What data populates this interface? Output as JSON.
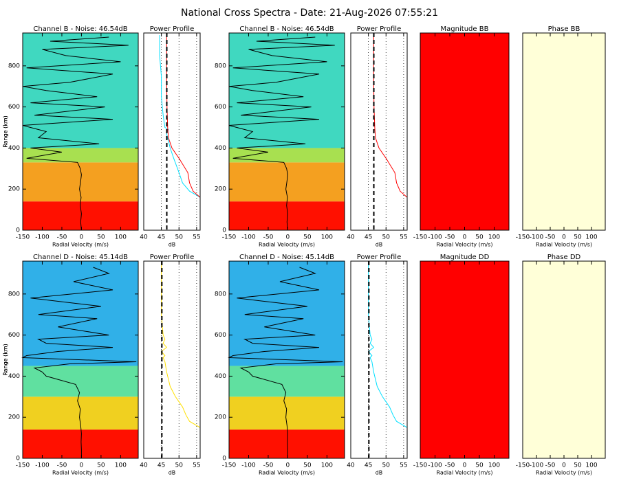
{
  "title": "National Cross Spectra - Date: 21-Aug-2026 07:55:21",
  "chart_data": [
    {
      "type": "heatmap",
      "title": "Channel B - Noise: 46.54dB",
      "xlabel": "Radial Velocity (m/s)",
      "ylabel": "Range (km)",
      "xlim": [
        -150,
        145
      ],
      "ylim": [
        0,
        960
      ],
      "xticks": [
        -150,
        -100,
        -50,
        0,
        50,
        100
      ],
      "yticks": [
        0,
        200,
        400,
        600,
        800
      ],
      "bands": [
        {
          "y0": 0,
          "y1": 140,
          "color": "#ff1000"
        },
        {
          "y0": 140,
          "y1": 330,
          "color": "#f4a020"
        },
        {
          "y0": 330,
          "y1": 400,
          "color": "#a8e050"
        },
        {
          "y0": 400,
          "y1": 960,
          "color": "#40d8c0"
        }
      ],
      "series": [
        {
          "color": "#000000",
          "x": [
            0,
            -2,
            0,
            -3,
            -1,
            -5,
            -2,
            0,
            -3,
            -10,
            -140,
            -50,
            -130,
            45,
            -110,
            -90,
            -150,
            80,
            -120,
            60,
            -130,
            40,
            -90,
            -150,
            -30,
            80,
            -140,
            100,
            -40,
            -100,
            120,
            -80,
            70
          ],
          "values": [
            0,
            40,
            80,
            120,
            160,
            200,
            240,
            270,
            300,
            330,
            350,
            380,
            400,
            420,
            450,
            480,
            510,
            540,
            560,
            600,
            620,
            650,
            680,
            700,
            720,
            760,
            790,
            820,
            850,
            880,
            900,
            920,
            940
          ]
        }
      ]
    },
    {
      "type": "line",
      "title": "Power Profile",
      "xlabel": "dB",
      "xlim": [
        40,
        56
      ],
      "ylim": [
        0,
        960
      ],
      "xticks": [
        40,
        45,
        50,
        55
      ],
      "grid": true,
      "noise_line": 46.54,
      "series": [
        {
          "color": "#00e0ff",
          "x": [
            56,
            53,
            51,
            50,
            48.5,
            47.5,
            46.5,
            47,
            46,
            45.5,
            45,
            45,
            44.5,
            44.5
          ],
          "values": [
            160,
            190,
            230,
            280,
            350,
            400,
            470,
            490,
            500,
            560,
            650,
            750,
            850,
            950
          ]
        },
        {
          "color": "#ff0000",
          "x": [
            56,
            54,
            53,
            52.5,
            50,
            48,
            47,
            46.8,
            46.6,
            46.5,
            46.5
          ],
          "values": [
            160,
            190,
            230,
            280,
            350,
            400,
            450,
            500,
            600,
            750,
            950
          ]
        }
      ]
    },
    {
      "type": "heatmap",
      "title": "Channel B - Noise: 46.54dB",
      "xlabel": "Radial Velocity (m/s)",
      "ylabel": "Range (km)",
      "xlim": [
        -150,
        145
      ],
      "ylim": [
        0,
        960
      ],
      "xticks": [
        -150,
        -100,
        -50,
        0,
        50,
        100
      ],
      "yticks": [
        0,
        200,
        400,
        600,
        800
      ],
      "bands": [
        {
          "y0": 0,
          "y1": 140,
          "color": "#ff1000"
        },
        {
          "y0": 140,
          "y1": 330,
          "color": "#f4a020"
        },
        {
          "y0": 330,
          "y1": 400,
          "color": "#a8e050"
        },
        {
          "y0": 400,
          "y1": 960,
          "color": "#40d8c0"
        }
      ],
      "series": [
        {
          "color": "#000000",
          "x": [
            0,
            -2,
            0,
            -3,
            -1,
            -5,
            -2,
            0,
            -3,
            -10,
            -140,
            -50,
            -130,
            45,
            -110,
            -90,
            -150,
            80,
            -120,
            60,
            -130,
            40,
            -90,
            -150,
            -30,
            80,
            -140,
            100,
            -40,
            -100,
            120,
            -80,
            70
          ],
          "values": [
            0,
            40,
            80,
            120,
            160,
            200,
            240,
            270,
            300,
            330,
            350,
            380,
            400,
            420,
            450,
            480,
            510,
            540,
            560,
            600,
            620,
            650,
            680,
            700,
            720,
            760,
            790,
            820,
            850,
            880,
            900,
            920,
            940
          ]
        }
      ]
    },
    {
      "type": "line",
      "title": "Power Profile",
      "xlabel": "dB",
      "xlim": [
        40,
        56
      ],
      "ylim": [
        0,
        960
      ],
      "xticks": [
        40,
        45,
        50,
        55
      ],
      "grid": true,
      "noise_line": 46.54,
      "series": [
        {
          "color": "#ff0000",
          "x": [
            56,
            54,
            53,
            52.5,
            50,
            48,
            47,
            46.8,
            46.6,
            46.5,
            46.5
          ],
          "values": [
            160,
            190,
            230,
            280,
            350,
            400,
            450,
            500,
            600,
            750,
            950
          ]
        }
      ]
    },
    {
      "type": "heatmap",
      "title": "Magnitude BB",
      "xlabel": "Radial Velocity (m/s)",
      "xlim": [
        -150,
        150
      ],
      "ylim": [
        0,
        960
      ],
      "xticks": [
        -150,
        -100,
        -50,
        0,
        50,
        100
      ],
      "bands": [
        {
          "y0": 0,
          "y1": 960,
          "color": "#ff0000"
        }
      ],
      "series": []
    },
    {
      "type": "heatmap",
      "title": "Phase BB",
      "xlabel": "Radial Velocity (m/s)",
      "xlim": [
        -150,
        150
      ],
      "ylim": [
        0,
        960
      ],
      "xticks": [
        -150,
        -100,
        -50,
        0,
        50,
        100
      ],
      "bands": [
        {
          "y0": 0,
          "y1": 960,
          "color": "#ffffd8"
        }
      ],
      "series": []
    },
    {
      "type": "heatmap",
      "title": "Channel D - Noise: 45.14dB",
      "xlabel": "Radial Velocity (m/s)",
      "ylabel": "Range (km)",
      "xlim": [
        -150,
        145
      ],
      "ylim": [
        0,
        960
      ],
      "xticks": [
        -150,
        -100,
        -50,
        0,
        50,
        100
      ],
      "yticks": [
        0,
        200,
        400,
        600,
        800
      ],
      "bands": [
        {
          "y0": 0,
          "y1": 140,
          "color": "#ff1000"
        },
        {
          "y0": 140,
          "y1": 300,
          "color": "#f0d020"
        },
        {
          "y0": 300,
          "y1": 450,
          "color": "#60e0a0"
        },
        {
          "y0": 450,
          "y1": 960,
          "color": "#30b0e8"
        }
      ],
      "series": [
        {
          "color": "#000000",
          "x": [
            0,
            0,
            -1,
            0,
            -2,
            -5,
            -3,
            -10,
            -5,
            -15,
            -90,
            -100,
            -120,
            -30,
            140,
            -150,
            -140,
            -60,
            80,
            -90,
            -110,
            70,
            -60,
            40,
            -110,
            50,
            -130,
            80,
            -20,
            70,
            30
          ],
          "values": [
            0,
            40,
            80,
            120,
            160,
            200,
            240,
            280,
            320,
            360,
            400,
            420,
            440,
            460,
            470,
            490,
            500,
            520,
            540,
            560,
            580,
            600,
            640,
            680,
            700,
            740,
            780,
            820,
            860,
            900,
            930
          ]
        }
      ]
    },
    {
      "type": "line",
      "title": "Power Profile",
      "xlabel": "dB",
      "xlim": [
        40,
        56
      ],
      "ylim": [
        0,
        960
      ],
      "xticks": [
        40,
        45,
        50,
        55
      ],
      "grid": true,
      "noise_line": 45.14,
      "series": [
        {
          "color": "#ffe000",
          "x": [
            56,
            53,
            52,
            51,
            49,
            47.5,
            46.5,
            46,
            45.5,
            46,
            45,
            46.5,
            45.5,
            46,
            45.5,
            45,
            45
          ],
          "values": [
            150,
            180,
            210,
            250,
            300,
            350,
            420,
            470,
            490,
            500,
            520,
            540,
            560,
            580,
            600,
            700,
            950
          ]
        }
      ]
    },
    {
      "type": "heatmap",
      "title": "Channel D - Noise: 45.14dB",
      "xlabel": "Radial Velocity (m/s)",
      "ylabel": "Range (km)",
      "xlim": [
        -150,
        145
      ],
      "ylim": [
        0,
        960
      ],
      "xticks": [
        -150,
        -100,
        -50,
        0,
        50,
        100
      ],
      "yticks": [
        0,
        200,
        400,
        600,
        800
      ],
      "bands": [
        {
          "y0": 0,
          "y1": 140,
          "color": "#ff1000"
        },
        {
          "y0": 140,
          "y1": 300,
          "color": "#f0d020"
        },
        {
          "y0": 300,
          "y1": 450,
          "color": "#60e0a0"
        },
        {
          "y0": 450,
          "y1": 960,
          "color": "#30b0e8"
        }
      ],
      "series": [
        {
          "color": "#000000",
          "x": [
            0,
            0,
            -1,
            0,
            -2,
            -5,
            -3,
            -10,
            -5,
            -15,
            -90,
            -100,
            -120,
            -30,
            140,
            -150,
            -140,
            -60,
            80,
            -90,
            -110,
            70,
            -60,
            40,
            -110,
            50,
            -130,
            80,
            -20,
            70,
            30
          ],
          "values": [
            0,
            40,
            80,
            120,
            160,
            200,
            240,
            280,
            320,
            360,
            400,
            420,
            440,
            460,
            470,
            490,
            500,
            520,
            540,
            560,
            580,
            600,
            640,
            680,
            700,
            740,
            780,
            820,
            860,
            900,
            930
          ]
        }
      ]
    },
    {
      "type": "line",
      "title": "Power Profile",
      "xlabel": "dB",
      "xlim": [
        40,
        56
      ],
      "ylim": [
        0,
        960
      ],
      "xticks": [
        40,
        45,
        50,
        55
      ],
      "grid": true,
      "noise_line": 45.14,
      "series": [
        {
          "color": "#00e0ff",
          "x": [
            56,
            53,
            52,
            51,
            49,
            47.5,
            46.5,
            46,
            45.5,
            46,
            45,
            46.5,
            45.5,
            46,
            45.5,
            45,
            45
          ],
          "values": [
            150,
            180,
            210,
            250,
            300,
            350,
            420,
            470,
            490,
            500,
            520,
            540,
            560,
            580,
            600,
            700,
            950
          ]
        }
      ]
    },
    {
      "type": "heatmap",
      "title": "Magnitude DD",
      "xlabel": "Radial Velocity (m/s)",
      "xlim": [
        -150,
        150
      ],
      "ylim": [
        0,
        960
      ],
      "xticks": [
        -150,
        -100,
        -50,
        0,
        50,
        100
      ],
      "bands": [
        {
          "y0": 0,
          "y1": 960,
          "color": "#ff0000"
        }
      ],
      "series": []
    },
    {
      "type": "heatmap",
      "title": "Phase DD",
      "xlabel": "Radial Velocity (m/s)",
      "xlim": [
        -150,
        150
      ],
      "ylim": [
        0,
        960
      ],
      "xticks": [
        -150,
        -100,
        -50,
        0,
        50,
        100
      ],
      "bands": [
        {
          "y0": 0,
          "y1": 960,
          "color": "#ffffd8"
        }
      ],
      "series": []
    }
  ]
}
